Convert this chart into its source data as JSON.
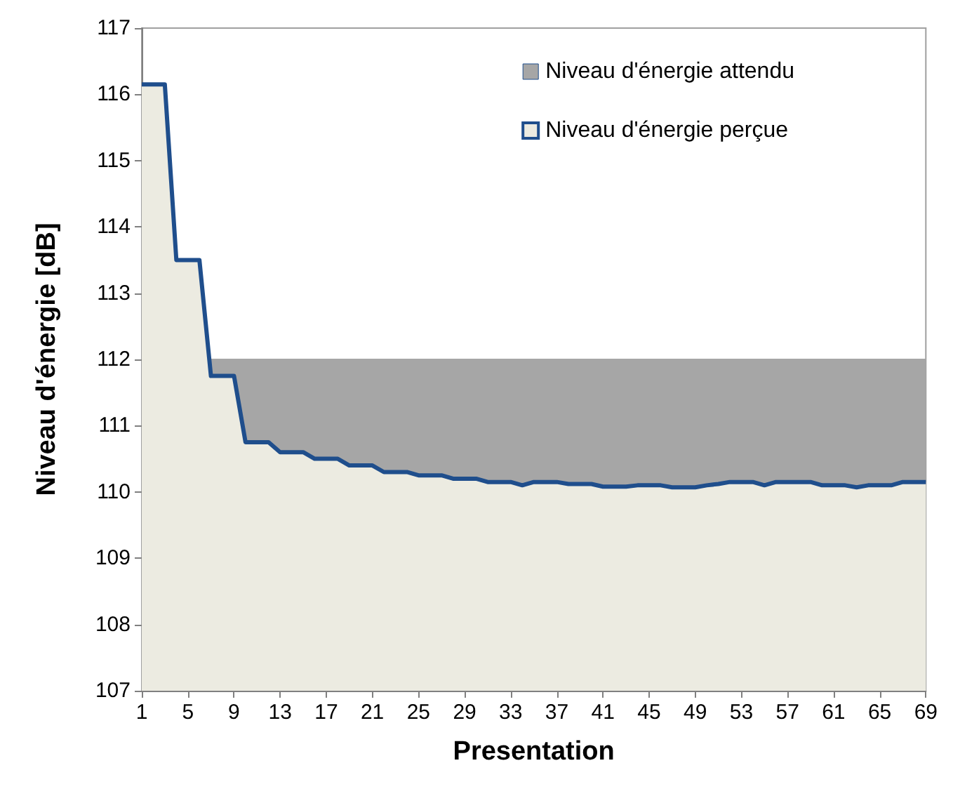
{
  "chart_data": {
    "type": "area",
    "xlabel": "Presentation",
    "ylabel": "Niveau d'énergie [dB]",
    "categories": [
      "1",
      null,
      null,
      null,
      "5",
      null,
      null,
      null,
      "9",
      null,
      null,
      null,
      "13",
      null,
      null,
      null,
      "17",
      null,
      null,
      null,
      "21",
      null,
      null,
      null,
      "25",
      null,
      null,
      null,
      "29",
      null,
      null,
      null,
      "33",
      null,
      null,
      null,
      "37",
      null,
      null,
      null,
      "41",
      null,
      null,
      null,
      "45",
      null,
      null,
      null,
      "49",
      null,
      null,
      null,
      "53",
      null,
      null,
      null,
      "57",
      null,
      null,
      null,
      "61",
      null,
      null,
      null,
      "65",
      null,
      null,
      null,
      "69"
    ],
    "series": [
      {
        "name": "Niveau d'énergie attendu",
        "color": "#a6a6a6",
        "values": [
          null,
          null,
          null,
          null,
          null,
          null,
          112,
          112,
          112,
          112,
          112,
          112,
          112,
          112,
          112,
          112,
          112,
          112,
          112,
          112,
          112,
          112,
          112,
          112,
          112,
          112,
          112,
          112,
          112,
          112,
          112,
          112,
          112,
          112,
          112,
          112,
          112,
          112,
          112,
          112,
          112,
          112,
          112,
          112,
          112,
          112,
          112,
          112,
          112,
          112,
          112,
          112,
          112,
          112,
          112,
          112,
          112,
          112,
          112,
          112,
          112,
          112,
          112,
          112,
          112,
          112,
          112,
          112,
          112
        ]
      },
      {
        "name": "Niveau d'énergie perçue",
        "color": "#1f4e8c",
        "values": [
          116.15,
          116.15,
          116.15,
          113.5,
          113.5,
          113.5,
          111.75,
          111.75,
          111.75,
          110.75,
          110.75,
          110.75,
          110.6,
          110.6,
          110.6,
          110.5,
          110.5,
          110.5,
          110.4,
          110.4,
          110.4,
          110.3,
          110.3,
          110.3,
          110.25,
          110.25,
          110.25,
          110.2,
          110.2,
          110.2,
          110.15,
          110.15,
          110.15,
          110.1,
          110.15,
          110.15,
          110.15,
          110.12,
          110.12,
          110.12,
          110.08,
          110.08,
          110.08,
          110.1,
          110.1,
          110.1,
          110.07,
          110.07,
          110.07,
          110.1,
          110.12,
          110.15,
          110.15,
          110.15,
          110.1,
          110.15,
          110.15,
          110.15,
          110.15,
          110.1,
          110.1,
          110.1,
          110.07,
          110.1,
          110.1,
          110.1,
          110.15,
          110.15,
          110.15
        ]
      }
    ],
    "ylim": [
      107,
      117
    ],
    "yticks": [
      107,
      108,
      109,
      110,
      111,
      112,
      113,
      114,
      115,
      116,
      117
    ],
    "grid": false,
    "legend": "top right"
  }
}
